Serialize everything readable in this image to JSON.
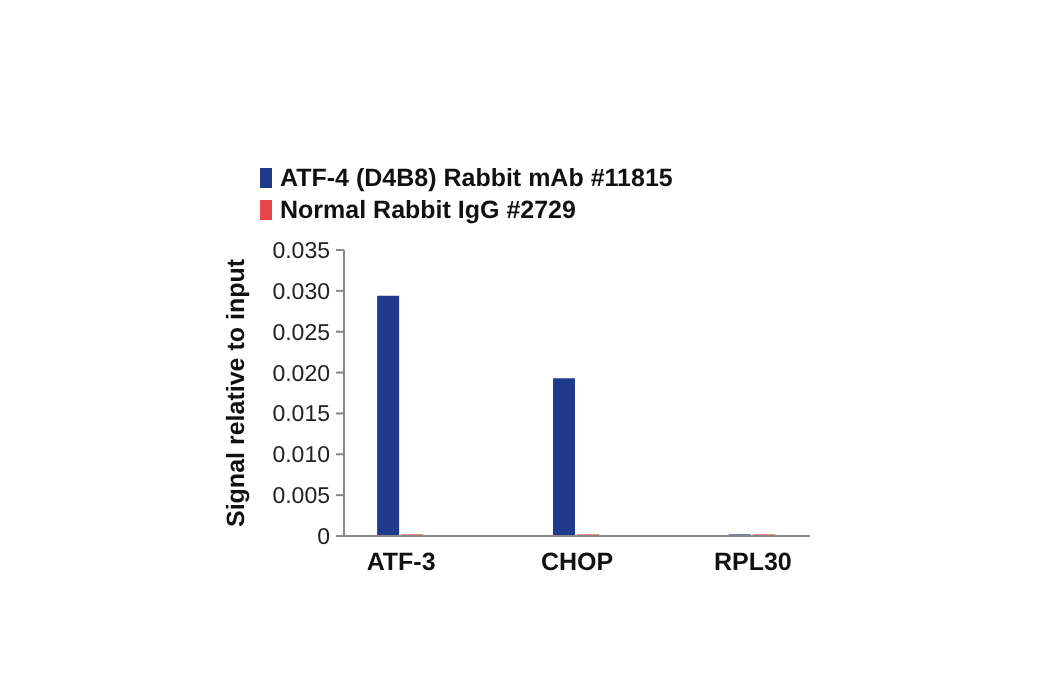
{
  "chart_data": {
    "type": "bar",
    "ylabel": "Signal relative to input",
    "categories": [
      "ATF-3",
      "CHOP",
      "RPL30"
    ],
    "series": [
      {
        "name": "ATF-4 (D4B8) Rabbit mAb #11815",
        "color": "#1f3a8a",
        "values": [
          0.0294,
          0.0193,
          0.0002
        ]
      },
      {
        "name": "Normal Rabbit IgG #2729",
        "color": "#e8464b",
        "values": [
          0.0002,
          0.0002,
          0.0002
        ]
      }
    ],
    "ylim": [
      0,
      0.035
    ],
    "yticks": [
      {
        "value": 0,
        "label": "0"
      },
      {
        "value": 0.005,
        "label": "0.005"
      },
      {
        "value": 0.01,
        "label": "0.010"
      },
      {
        "value": 0.015,
        "label": "0.015"
      },
      {
        "value": 0.02,
        "label": "0.020"
      },
      {
        "value": 0.025,
        "label": "0.025"
      },
      {
        "value": 0.03,
        "label": "0.030"
      },
      {
        "value": 0.035,
        "label": "0.035"
      }
    ],
    "legend": "top left",
    "grid": false
  }
}
